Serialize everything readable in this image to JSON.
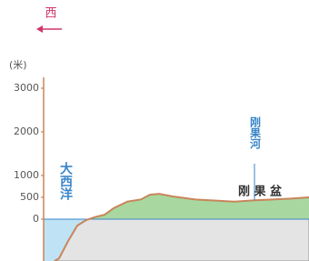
{
  "chart_data": {
    "type": "area",
    "direction_label": "西",
    "y_unit": "(米)",
    "annotations": [
      {
        "text": "大西洋"
      },
      {
        "text": "刚果河"
      },
      {
        "text": "刚 果 盆"
      }
    ],
    "x": [
      12,
      17,
      27,
      37,
      47,
      57,
      67,
      77,
      92,
      107,
      117,
      127,
      142,
      167,
      192,
      210,
      232,
      252,
      272,
      292
    ],
    "values": [
      -960,
      -900,
      -500,
      -150,
      -20,
      50,
      100,
      250,
      400,
      450,
      560,
      580,
      520,
      450,
      420,
      400,
      430,
      450,
      470,
      500
    ],
    "color": "#c8855a",
    "xlim": [
      0,
      292
    ],
    "ylim": [
      -960,
      3250
    ],
    "yticks": [
      0,
      500,
      1000,
      2000,
      3000
    ]
  }
}
